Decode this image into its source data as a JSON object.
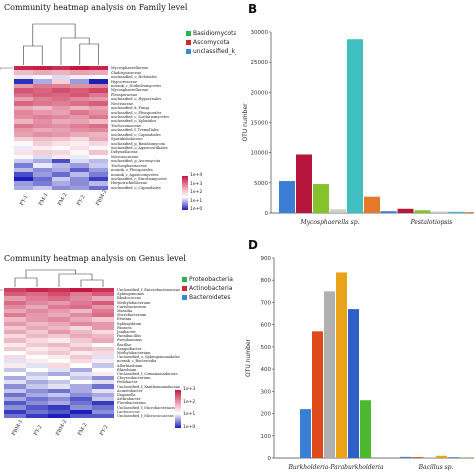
{
  "panels": {
    "A": {
      "title": "Community heatmap analysis on Family level"
    },
    "B": {
      "letter": "B"
    },
    "C": {
      "title": "Community heatmap analysis on Genus level"
    },
    "D": {
      "letter": "D"
    }
  },
  "chart_data": [
    {
      "type": "heatmap",
      "title": "Community heatmap analysis on Family level",
      "columns": [
        "FY-1",
        "FM-1",
        "FM-2",
        "FY-2",
        "FBM-2"
      ],
      "rows": [
        "Mycosphaerellaceae",
        "Cladosporiaceae",
        "unclassified_o_Helotiales",
        "Hypocreaceae",
        "norank_c_Dothideomycetes",
        "Mycosphaerellaceae",
        "Pleosporaceae",
        "unclassified_o_Hypocreales",
        "Nectriaceae",
        "unclassified_k_Fungi",
        "unclassified_o_Pleosporales",
        "unclassified_c_Sordariomycetes",
        "unclassified_o_Xylariales",
        "Trichocomaceae",
        "unclassified_f_Tremellales",
        "unclassified_o_Capnodiales",
        "Sporidiobolaceae",
        "unclassified_p_Basidiomycota",
        "unclassified_o_Agaricostilbales",
        "Didymellaceae",
        "Microascaceae",
        "unclassified_p_Ascomycota",
        "Trichosphaeriaceae",
        "norank_o_Pleosporales",
        "norank_c_Agaricomycetes",
        "unclassified_c_Eurotiomycetes",
        "Herpotrichiellaceae",
        "unclassified_o_Capnodiales"
      ],
      "groups": [
        {
          "name": "Basidiomycota",
          "color": "#2db34a"
        },
        {
          "name": "Ascomycota",
          "color": "#d7262b"
        },
        {
          "name": "unclassified_k_Fungi",
          "color": "#3a88d8"
        }
      ],
      "color_scale": {
        "labels": [
          "1e+4",
          "1e+3",
          "1e+2",
          "1e+1",
          "1e+0"
        ],
        "high": "#c4163f",
        "low": "#1b1fb6"
      },
      "values": [
        [
          4.2,
          4.3,
          4.1,
          4.4,
          4.2
        ],
        [
          2.4,
          2.6,
          2.5,
          2.7,
          2.6
        ],
        [
          1.6,
          1.8,
          1.5,
          1.9,
          1.7
        ],
        [
          0.4,
          1.2,
          2.2,
          1.1,
          0.3
        ],
        [
          2.8,
          3.2,
          3.1,
          2.9,
          3.0
        ],
        [
          3.6,
          3.4,
          3.7,
          3.5,
          3.8
        ],
        [
          3.3,
          3.5,
          3.4,
          3.6,
          3.2
        ],
        [
          2.7,
          3.1,
          3.3,
          3.0,
          2.8
        ],
        [
          3.4,
          3.2,
          3.1,
          3.3,
          3.5
        ],
        [
          2.6,
          2.4,
          2.8,
          2.5,
          2.7
        ],
        [
          3.0,
          2.8,
          2.7,
          3.2,
          2.9
        ],
        [
          2.9,
          3.1,
          3.0,
          2.8,
          3.2
        ],
        [
          2.5,
          2.9,
          2.6,
          2.7,
          2.4
        ],
        [
          3.2,
          3.0,
          2.9,
          3.1,
          3.3
        ],
        [
          2.8,
          2.6,
          2.7,
          2.9,
          3.0
        ],
        [
          2.7,
          2.9,
          2.8,
          2.6,
          2.5
        ],
        [
          2.2,
          2.4,
          2.3,
          2.1,
          2.6
        ],
        [
          1.8,
          2.2,
          2.0,
          1.9,
          2.1
        ],
        [
          1.6,
          1.9,
          1.7,
          2.0,
          1.8
        ],
        [
          2.0,
          2.2,
          2.1,
          1.8,
          2.3
        ],
        [
          1.7,
          1.5,
          1.9,
          1.6,
          1.8
        ],
        [
          1.4,
          1.2,
          0.6,
          1.5,
          1.3
        ],
        [
          0.9,
          1.6,
          1.3,
          1.1,
          1.4
        ],
        [
          1.3,
          1.0,
          1.2,
          0.7,
          1.1
        ],
        [
          0.6,
          1.1,
          0.8,
          1.3,
          0.9
        ],
        [
          0.3,
          0.8,
          1.4,
          1.0,
          0.5
        ],
        [
          1.1,
          0.9,
          1.2,
          1.0,
          1.3
        ],
        [
          1.2,
          1.4,
          1.0,
          1.1,
          0.8
        ]
      ]
    },
    {
      "type": "bar",
      "panel": "B",
      "ylabel": "OTU number",
      "ylim": [
        0,
        30000
      ],
      "yticks": [
        0,
        5000,
        10000,
        15000,
        20000,
        25000,
        30000
      ],
      "categories": [
        "Mycosphaerella sp.",
        "Pestalotiopsis"
      ],
      "series": [
        {
          "color": "#3a7fd5",
          "values": [
            5300,
            300
          ]
        },
        {
          "color": "#b5173c",
          "values": [
            9700,
            700
          ]
        },
        {
          "color": "#86c229",
          "values": [
            4800,
            450
          ]
        },
        {
          "color": "#cccccc",
          "values": [
            600,
            250
          ]
        },
        {
          "color": "#3fbfbf",
          "values": [
            28800,
            200
          ]
        },
        {
          "color": "#e6782a",
          "values": [
            2700,
            150
          ]
        }
      ]
    },
    {
      "type": "heatmap",
      "title": "Community heatmap analysis on Genus level",
      "columns": [
        "FBM-1",
        "FY-2",
        "FBM-2",
        "FM-2",
        "FY-2"
      ],
      "rows": [
        "Unclassified_f_Enterobacteriaceae",
        "Sphingomonas",
        "Rhodococcus",
        "Methylobacterium",
        "Curtobacterium",
        "Massilia",
        "Microbacterium",
        "Erwinia",
        "Sphingobium",
        "Pantoea",
        "Janibacter",
        "Paenibacillus",
        "Pseudomonas",
        "Bacillus",
        "Sanguibacter",
        "Methylobacterium",
        "Unclassified_o_Sphingomonadales",
        "norank_c_Bacteroidia",
        "Allorhizobium",
        "Rhizobium",
        "Unclassified_f_Comamonadaceae",
        "Chryseobacterium",
        "Pedobacter",
        "Unclassified_f_Xanthomonadaceae",
        "Acinetobacter",
        "Duganella",
        "Arthrobacter",
        "Flavobacterium",
        "Unclassified_f_Microbacteriaceae",
        "Lactococcus",
        "Unclassified_f_Micrococcaceae"
      ],
      "groups": [
        {
          "name": "Proteobacteria",
          "color": "#2db34a"
        },
        {
          "name": "Actinobacteria",
          "color": "#d7262b"
        },
        {
          "name": "Bacteroidetes",
          "color": "#3a88d8"
        }
      ],
      "color_scale": {
        "labels": [
          "1e+3",
          "1e+2",
          "1e+1",
          "1e+0"
        ],
        "high": "#c4163f",
        "low": "#1b1fb6"
      },
      "values": [
        [
          3.2,
          3.4,
          3.3,
          3.5,
          3.3
        ],
        [
          3.0,
          2.9,
          3.1,
          2.8,
          3.0
        ],
        [
          2.6,
          2.8,
          2.9,
          2.7,
          2.5
        ],
        [
          2.9,
          2.7,
          2.6,
          2.8,
          3.0
        ],
        [
          2.7,
          2.5,
          2.8,
          2.9,
          2.6
        ],
        [
          2.5,
          2.7,
          2.6,
          2.4,
          2.8
        ],
        [
          2.8,
          2.6,
          2.5,
          2.7,
          2.9
        ],
        [
          2.4,
          2.6,
          2.7,
          2.5,
          2.3
        ],
        [
          2.6,
          2.4,
          2.5,
          2.7,
          2.6
        ],
        [
          2.3,
          2.5,
          2.4,
          2.2,
          2.6
        ],
        [
          2.5,
          2.3,
          2.6,
          2.4,
          2.2
        ],
        [
          2.2,
          2.4,
          2.3,
          2.5,
          2.4
        ],
        [
          2.4,
          2.2,
          2.1,
          2.3,
          2.5
        ],
        [
          2.1,
          2.3,
          2.4,
          2.2,
          2.0
        ],
        [
          2.3,
          2.1,
          2.2,
          2.4,
          2.3
        ],
        [
          2.0,
          2.2,
          2.3,
          2.1,
          2.2
        ],
        [
          2.2,
          2.0,
          2.1,
          2.3,
          1.9
        ],
        [
          1.9,
          2.1,
          2.0,
          2.2,
          2.1
        ],
        [
          2.1,
          1.9,
          2.2,
          2.0,
          1.8
        ],
        [
          1.8,
          2.0,
          1.9,
          1.7,
          2.0
        ],
        [
          2.0,
          1.8,
          1.7,
          1.9,
          2.1
        ],
        [
          1.7,
          1.9,
          2.0,
          1.8,
          1.6
        ],
        [
          1.9,
          1.7,
          1.8,
          2.0,
          1.9
        ],
        [
          1.6,
          1.8,
          1.9,
          1.7,
          1.5
        ],
        [
          1.8,
          1.6,
          1.5,
          1.7,
          1.9
        ],
        [
          1.5,
          1.7,
          1.8,
          1.6,
          1.7
        ],
        [
          1.7,
          1.5,
          1.6,
          1.4,
          1.8
        ],
        [
          1.4,
          1.6,
          1.7,
          1.5,
          1.3
        ],
        [
          1.6,
          1.4,
          1.3,
          1.6,
          1.5
        ],
        [
          1.3,
          1.5,
          1.4,
          1.2,
          1.6
        ],
        [
          1.5,
          1.3,
          1.2,
          1.4,
          1.4
        ]
      ]
    },
    {
      "type": "bar",
      "panel": "D",
      "ylabel": "OTU number",
      "ylim": [
        0,
        900
      ],
      "yticks": [
        0,
        100,
        200,
        300,
        400,
        500,
        600,
        700,
        800,
        900
      ],
      "categories": [
        "Burkholderia-Paraburkholderia",
        "Bacillus sp."
      ],
      "series": [
        {
          "color": "#3a7fd5",
          "values": [
            220,
            5
          ]
        },
        {
          "color": "#e04a1a",
          "values": [
            570,
            4
          ]
        },
        {
          "color": "#b0b0b0",
          "values": [
            750,
            3
          ]
        },
        {
          "color": "#e8a318",
          "values": [
            835,
            10
          ]
        },
        {
          "color": "#2f5fc8",
          "values": [
            670,
            3
          ]
        },
        {
          "color": "#4cb82d",
          "values": [
            260,
            2
          ]
        }
      ]
    }
  ]
}
